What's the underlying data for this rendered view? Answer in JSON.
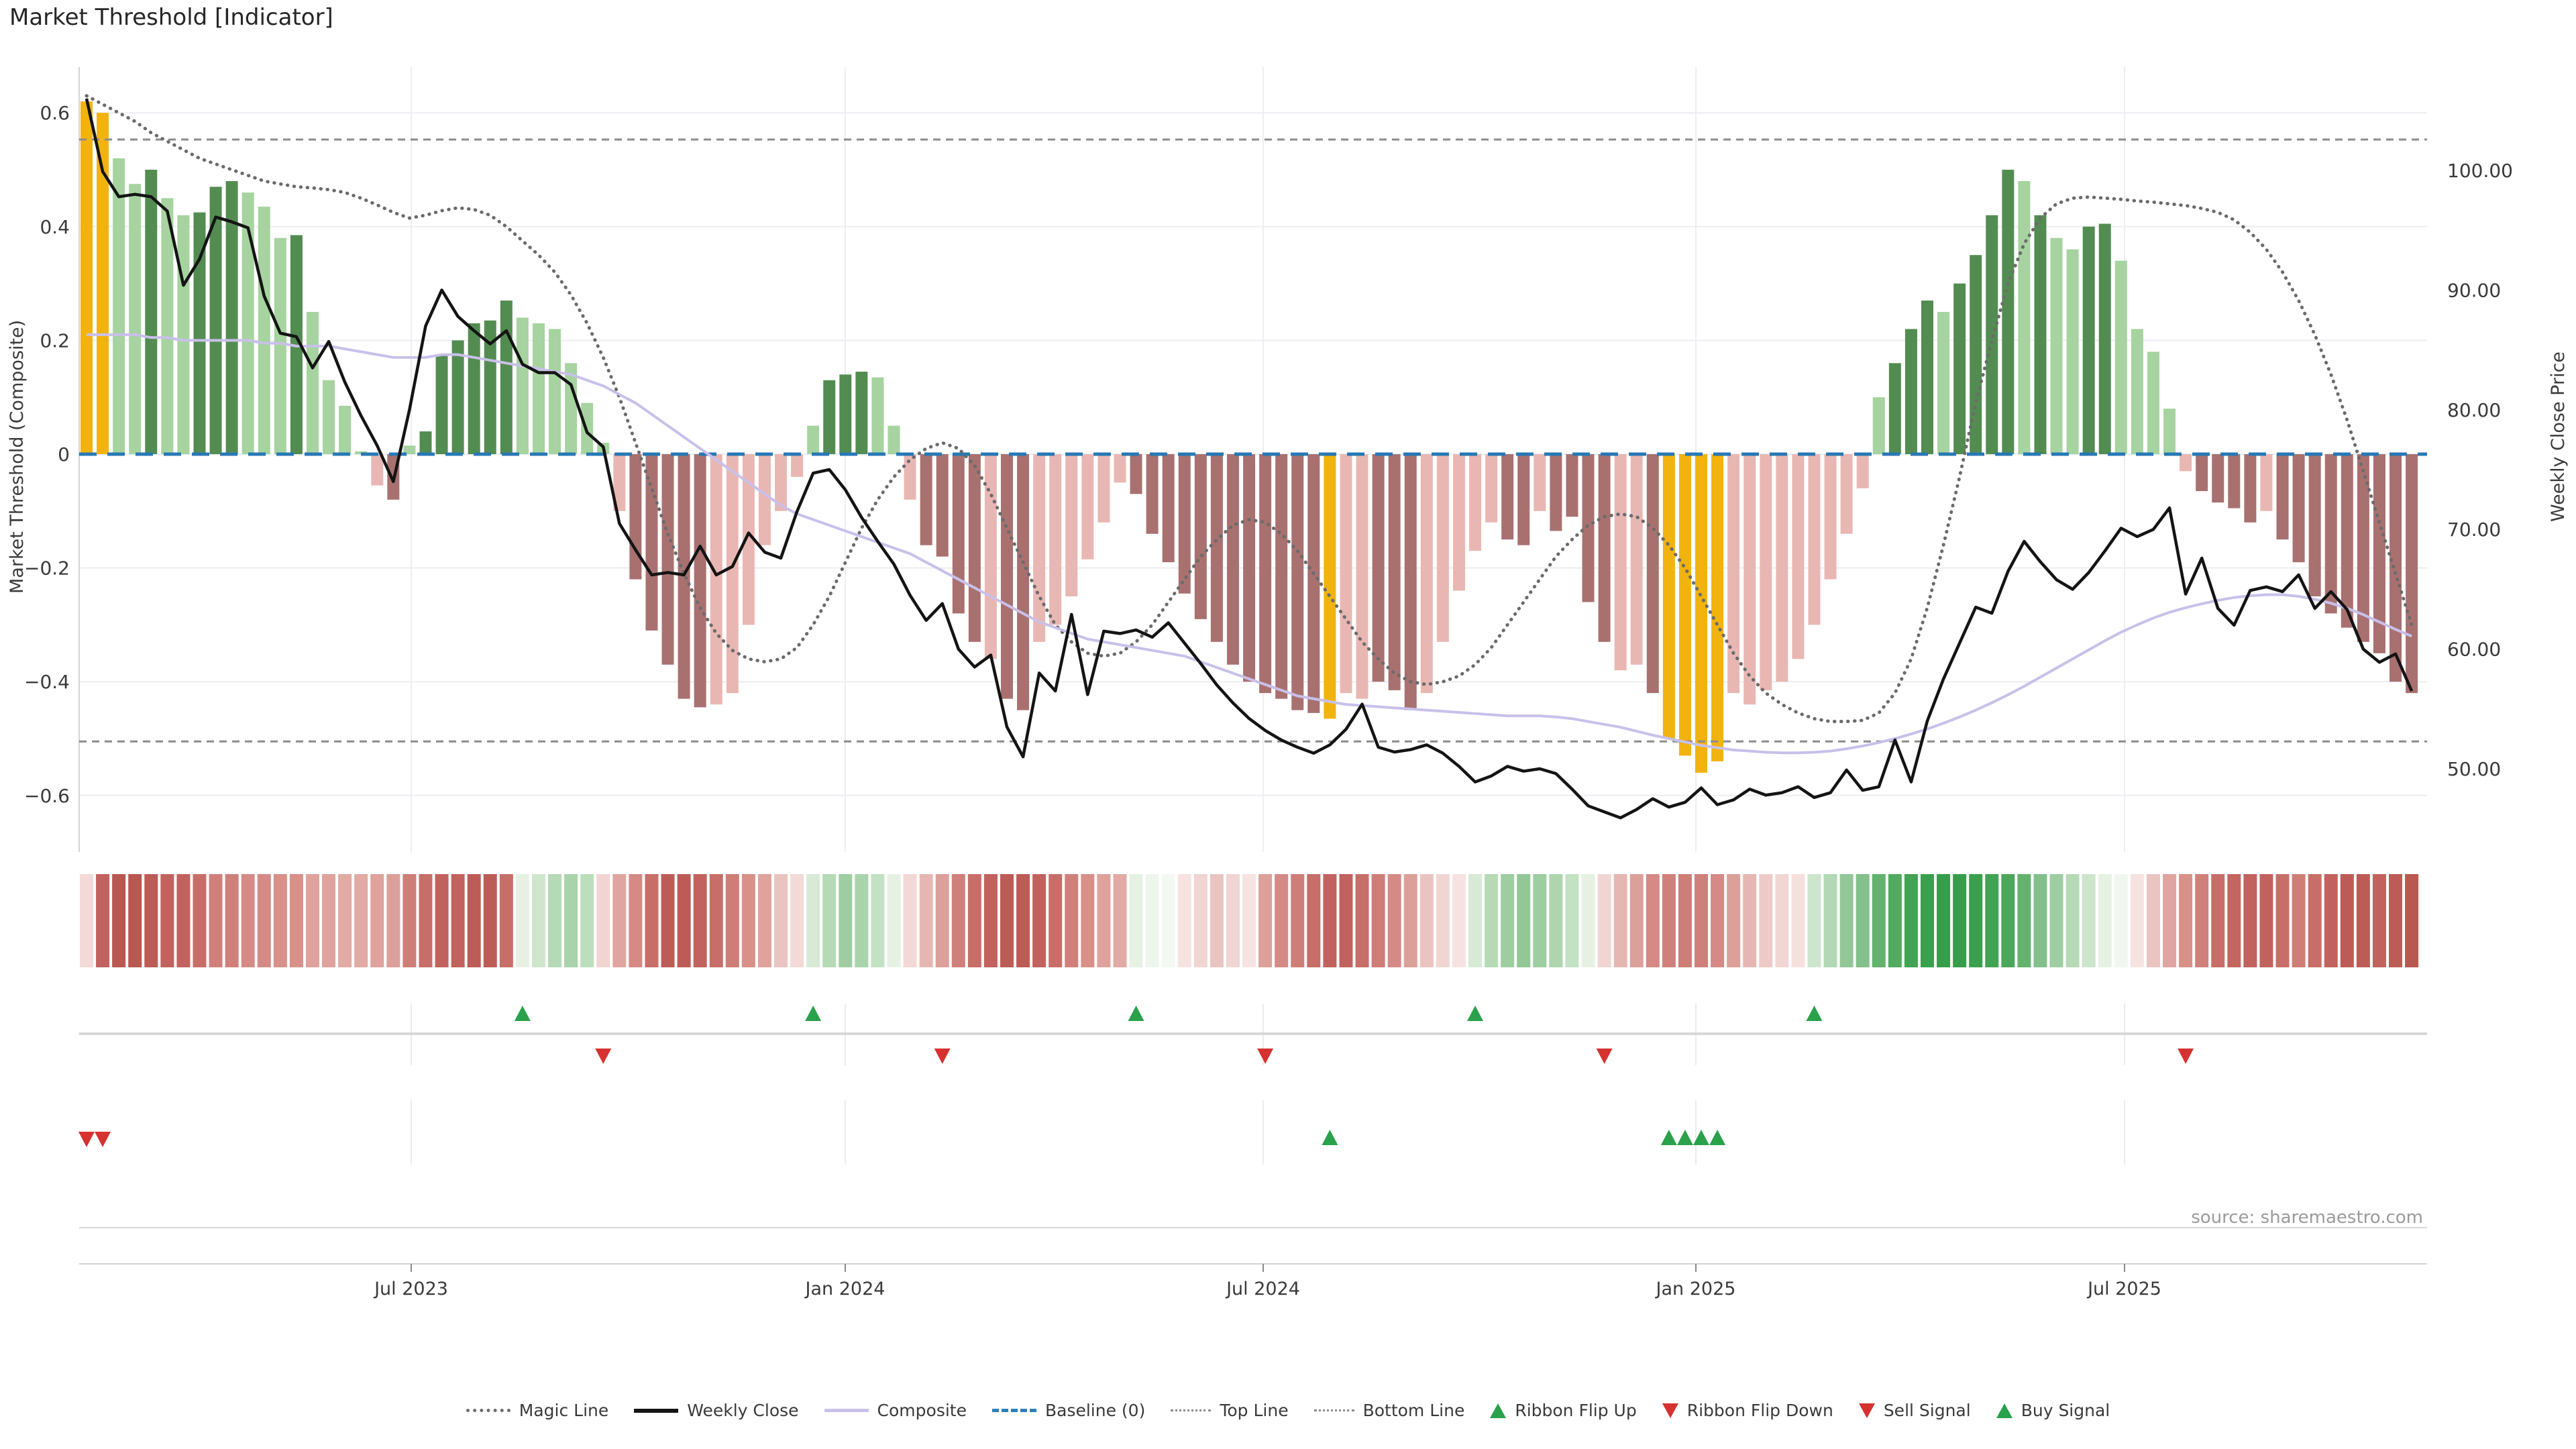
{
  "chart_data": {
    "type": "bar",
    "title": "Market Threshold [Indicator]",
    "source": "source: sharemaestro.com",
    "y_left": {
      "label": "Market Threshold (Composite)",
      "range": [
        -0.7,
        0.68
      ],
      "ticks": [
        {
          "label": "0.6",
          "v": 0.6
        },
        {
          "label": "0.4",
          "v": 0.4
        },
        {
          "label": "0.2",
          "v": 0.2
        },
        {
          "label": "0",
          "v": 0.0
        },
        {
          "label": "−0.2",
          "v": -0.2
        },
        {
          "label": "−0.4",
          "v": -0.4
        },
        {
          "label": "−0.6",
          "v": -0.6
        }
      ]
    },
    "y_right": {
      "label": "Weekly Close Price",
      "range": [
        43,
        108
      ],
      "ticks": [
        {
          "label": "100.00",
          "p": 100
        },
        {
          "label": "90.00",
          "p": 90
        },
        {
          "label": "80.00",
          "p": 80
        },
        {
          "label": "70.00",
          "p": 70
        },
        {
          "label": "60.00",
          "p": 60
        },
        {
          "label": "50.00",
          "p": 50
        }
      ]
    },
    "x_axis": {
      "ticks": [
        {
          "label": "Jul 2023",
          "x": 613
        },
        {
          "label": "Jan 2024",
          "x": 1260
        },
        {
          "label": "Jul 2024",
          "x": 1883
        },
        {
          "label": "Jan 2025",
          "x": 2528
        },
        {
          "label": "Jul 2025",
          "x": 3167
        }
      ],
      "weeks": 145,
      "start": "mid-Feb 2023",
      "grid": true,
      "legend_position": "bottom"
    },
    "reference_lines": {
      "top_line": 0.553,
      "bottom_line": -0.505,
      "baseline": 0
    },
    "colors": {
      "bar": {
        "g": "#f2b30e",
        "lg": "#a6d39f",
        "dg": "#538c51",
        "lr": "#e9b7b3",
        "dr": "#a87170"
      },
      "weekly_close": "#141414",
      "composite": "#c9c0ea",
      "magic": "#6b6b6b",
      "baseline": "#2878b5",
      "ref_dash": "#8c8c8c",
      "grid": "#ededf3",
      "signal_up": "#2aa14b",
      "signal_down": "#d63230",
      "divider": "#d8d8d8",
      "tick_text": "#3a3a3a",
      "spine": "#d4d4d4"
    },
    "series": {
      "threshold": [
        0.62,
        0.6,
        0.52,
        0.475,
        0.5,
        0.45,
        0.42,
        0.425,
        0.47,
        0.48,
        0.46,
        0.435,
        0.38,
        0.385,
        0.25,
        0.13,
        0.085,
        0.005,
        -0.055,
        -0.08,
        0.015,
        0.04,
        0.175,
        0.2,
        0.23,
        0.235,
        0.27,
        0.24,
        0.23,
        0.22,
        0.16,
        0.09,
        0.02,
        -0.1,
        -0.22,
        -0.31,
        -0.37,
        -0.43,
        -0.445,
        -0.44,
        -0.42,
        -0.3,
        -0.16,
        -0.1,
        -0.04,
        0.05,
        0.13,
        0.14,
        0.145,
        0.135,
        0.05,
        -0.08,
        -0.16,
        -0.18,
        -0.28,
        -0.33,
        -0.36,
        -0.43,
        -0.45,
        -0.33,
        -0.3,
        -0.25,
        -0.185,
        -0.12,
        -0.05,
        -0.07,
        -0.14,
        -0.19,
        -0.245,
        -0.29,
        -0.33,
        -0.37,
        -0.4,
        -0.42,
        -0.43,
        -0.45,
        -0.455,
        -0.465,
        -0.42,
        -0.43,
        -0.4,
        -0.415,
        -0.45,
        -0.42,
        -0.33,
        -0.24,
        -0.17,
        -0.12,
        -0.15,
        -0.16,
        -0.1,
        -0.135,
        -0.11,
        -0.26,
        -0.33,
        -0.38,
        -0.37,
        -0.42,
        -0.5,
        -0.53,
        -0.56,
        -0.54,
        -0.42,
        -0.44,
        -0.415,
        -0.4,
        -0.36,
        -0.3,
        -0.22,
        -0.14,
        -0.06,
        0.1,
        0.16,
        0.22,
        0.27,
        0.25,
        0.3,
        0.35,
        0.42,
        0.5,
        0.48,
        0.42,
        0.38,
        0.36,
        0.4,
        0.405,
        0.34,
        0.22,
        0.18,
        0.08,
        -0.03,
        -0.065,
        -0.085,
        -0.095,
        -0.12,
        -0.1,
        -0.15,
        -0.19,
        -0.25,
        -0.28,
        -0.305,
        -0.33,
        -0.35,
        -0.4,
        -0.42
      ],
      "bar_class": [
        "g",
        "g",
        "lg",
        "lg",
        "dg",
        "lg",
        "lg",
        "dg",
        "dg",
        "dg",
        "lg",
        "lg",
        "lg",
        "dg",
        "lg",
        "lg",
        "lg",
        "lg",
        "lr",
        "dr",
        "lg",
        "dg",
        "dg",
        "dg",
        "dg",
        "dg",
        "dg",
        "lg",
        "lg",
        "lg",
        "lg",
        "lg",
        "lg",
        "lr",
        "dr",
        "dr",
        "dr",
        "dr",
        "dr",
        "lr",
        "lr",
        "lr",
        "lr",
        "lr",
        "lr",
        "lg",
        "dg",
        "dg",
        "dg",
        "lg",
        "lg",
        "lr",
        "dr",
        "dr",
        "dr",
        "dr",
        "lr",
        "dr",
        "dr",
        "lr",
        "lr",
        "lr",
        "lr",
        "lr",
        "lr",
        "dr",
        "dr",
        "dr",
        "dr",
        "dr",
        "dr",
        "dr",
        "dr",
        "dr",
        "dr",
        "dr",
        "dr",
        "g",
        "lr",
        "lr",
        "dr",
        "dr",
        "dr",
        "lr",
        "lr",
        "lr",
        "lr",
        "lr",
        "dr",
        "dr",
        "lr",
        "dr",
        "dr",
        "dr",
        "dr",
        "lr",
        "lr",
        "dr",
        "g",
        "g",
        "g",
        "g",
        "lr",
        "lr",
        "lr",
        "lr",
        "lr",
        "lr",
        "lr",
        "lr",
        "lr",
        "lg",
        "dg",
        "dg",
        "dg",
        "lg",
        "dg",
        "dg",
        "dg",
        "dg",
        "lg",
        "dg",
        "lg",
        "lg",
        "dg",
        "dg",
        "lg",
        "lg",
        "lg",
        "lg",
        "lr",
        "dr",
        "dr",
        "dr",
        "dr",
        "lr",
        "dr",
        "dr",
        "dr",
        "dr",
        "dr",
        "dr",
        "dr",
        "dr",
        "dr"
      ],
      "weekly_close": [
        106.0,
        99.9,
        97.8,
        98.0,
        97.8,
        96.6,
        90.4,
        92.6,
        96.1,
        95.7,
        95.2,
        89.5,
        86.4,
        86.1,
        83.5,
        85.7,
        82.3,
        79.5,
        77.0,
        74.0,
        80.0,
        87.0,
        90.0,
        87.8,
        86.6,
        85.5,
        86.6,
        83.8,
        83.1,
        83.1,
        82.1,
        78.1,
        76.9,
        70.5,
        68.3,
        66.2,
        66.4,
        66.2,
        68.6,
        66.2,
        66.9,
        69.7,
        68.1,
        67.6,
        71.5,
        74.7,
        75.0,
        73.3,
        71.0,
        69.0,
        67.1,
        64.5,
        62.4,
        63.8,
        60.0,
        58.5,
        59.5,
        53.5,
        51.0,
        58.0,
        56.5,
        62.9,
        56.2,
        61.5,
        61.3,
        61.6,
        61.0,
        62.2,
        60.5,
        58.8,
        57.0,
        55.5,
        54.2,
        53.2,
        52.4,
        51.8,
        51.3,
        52.0,
        53.3,
        55.4,
        51.8,
        51.4,
        51.6,
        52.0,
        51.3,
        50.2,
        48.9,
        49.4,
        50.2,
        49.8,
        50.0,
        49.6,
        48.3,
        46.9,
        46.4,
        45.9,
        46.6,
        47.5,
        46.8,
        47.2,
        48.4,
        47.0,
        47.4,
        48.3,
        47.8,
        48.0,
        48.5,
        47.6,
        48.0,
        49.9,
        48.2,
        48.5,
        52.4,
        48.9,
        54.0,
        57.5,
        60.5,
        63.5,
        63.0,
        66.5,
        69.0,
        67.3,
        65.8,
        65.0,
        66.4,
        68.2,
        70.1,
        69.4,
        70.0,
        71.8,
        64.6,
        67.6,
        63.4,
        62.0,
        64.9,
        65.2,
        64.8,
        66.2,
        63.4,
        64.8,
        63.3,
        60.0,
        58.9,
        59.6,
        56.5
      ],
      "composite": [
        0.21,
        0.21,
        0.21,
        0.21,
        0.205,
        0.205,
        0.2,
        0.2,
        0.2,
        0.2,
        0.2,
        0.195,
        0.195,
        0.19,
        0.19,
        0.19,
        0.185,
        0.18,
        0.175,
        0.17,
        0.17,
        0.17,
        0.175,
        0.175,
        0.17,
        0.165,
        0.16,
        0.155,
        0.15,
        0.145,
        0.14,
        0.13,
        0.12,
        0.105,
        0.09,
        0.07,
        0.05,
        0.03,
        0.01,
        -0.01,
        -0.03,
        -0.05,
        -0.07,
        -0.09,
        -0.105,
        -0.115,
        -0.125,
        -0.135,
        -0.145,
        -0.155,
        -0.165,
        -0.175,
        -0.19,
        -0.205,
        -0.22,
        -0.235,
        -0.25,
        -0.265,
        -0.28,
        -0.295,
        -0.305,
        -0.315,
        -0.325,
        -0.33,
        -0.335,
        -0.34,
        -0.345,
        -0.35,
        -0.355,
        -0.365,
        -0.375,
        -0.385,
        -0.395,
        -0.405,
        -0.415,
        -0.425,
        -0.43,
        -0.435,
        -0.44,
        -0.442,
        -0.444,
        -0.446,
        -0.448,
        -0.45,
        -0.452,
        -0.454,
        -0.456,
        -0.458,
        -0.46,
        -0.46,
        -0.46,
        -0.462,
        -0.465,
        -0.47,
        -0.475,
        -0.48,
        -0.487,
        -0.494,
        -0.5,
        -0.506,
        -0.512,
        -0.516,
        -0.52,
        -0.522,
        -0.524,
        -0.525,
        -0.525,
        -0.524,
        -0.522,
        -0.518,
        -0.513,
        -0.507,
        -0.5,
        -0.492,
        -0.483,
        -0.473,
        -0.462,
        -0.45,
        -0.437,
        -0.423,
        -0.408,
        -0.392,
        -0.376,
        -0.36,
        -0.344,
        -0.328,
        -0.313,
        -0.3,
        -0.288,
        -0.278,
        -0.27,
        -0.263,
        -0.257,
        -0.252,
        -0.249,
        -0.247,
        -0.247,
        -0.25,
        -0.255,
        -0.262,
        -0.271,
        -0.282,
        -0.295,
        -0.308,
        -0.32
      ],
      "magic": [
        0.63,
        0.615,
        0.6,
        0.585,
        0.565,
        0.55,
        0.535,
        0.52,
        0.51,
        0.5,
        0.49,
        0.48,
        0.475,
        0.47,
        0.468,
        0.465,
        0.46,
        0.45,
        0.438,
        0.425,
        0.415,
        0.42,
        0.428,
        0.433,
        0.43,
        0.42,
        0.4,
        0.375,
        0.35,
        0.32,
        0.28,
        0.23,
        0.17,
        0.1,
        0.02,
        -0.06,
        -0.14,
        -0.21,
        -0.27,
        -0.315,
        -0.345,
        -0.36,
        -0.365,
        -0.36,
        -0.34,
        -0.3,
        -0.25,
        -0.19,
        -0.13,
        -0.08,
        -0.04,
        -0.01,
        0.01,
        0.02,
        0.01,
        -0.02,
        -0.07,
        -0.13,
        -0.19,
        -0.25,
        -0.3,
        -0.33,
        -0.35,
        -0.355,
        -0.35,
        -0.33,
        -0.3,
        -0.26,
        -0.22,
        -0.18,
        -0.15,
        -0.125,
        -0.115,
        -0.12,
        -0.14,
        -0.17,
        -0.21,
        -0.25,
        -0.29,
        -0.33,
        -0.36,
        -0.385,
        -0.4,
        -0.405,
        -0.4,
        -0.39,
        -0.37,
        -0.34,
        -0.3,
        -0.26,
        -0.22,
        -0.18,
        -0.15,
        -0.125,
        -0.11,
        -0.105,
        -0.11,
        -0.13,
        -0.16,
        -0.2,
        -0.25,
        -0.3,
        -0.35,
        -0.39,
        -0.42,
        -0.44,
        -0.455,
        -0.465,
        -0.47,
        -0.47,
        -0.468,
        -0.455,
        -0.42,
        -0.36,
        -0.27,
        -0.16,
        -0.04,
        0.09,
        0.2,
        0.3,
        0.37,
        0.415,
        0.44,
        0.45,
        0.452,
        0.45,
        0.448,
        0.445,
        0.443,
        0.44,
        0.437,
        0.432,
        0.425,
        0.412,
        0.39,
        0.36,
        0.32,
        0.27,
        0.21,
        0.14,
        0.06,
        -0.03,
        -0.12,
        -0.21,
        -0.3
      ]
    },
    "ribbon": [
      "#f3dad8",
      "#c2625e",
      "#b95751",
      "#b95751",
      "#bd5c57",
      "#c2625e",
      "#c2625e",
      "#c86e68",
      "#d0807b",
      "#d0807b",
      "#d58a85",
      "#d58a85",
      "#d89089",
      "#d89089",
      "#dfa29d",
      "#dfa29d",
      "#e2aaa4",
      "#e2aaa4",
      "#dfa29d",
      "#dca09a",
      "#cf7d77",
      "#c86e68",
      "#c2625e",
      "#c2625e",
      "#bd5c57",
      "#bd5c57",
      "#c86e68",
      "#e6f1e4",
      "#cfe6cd",
      "#b6dab6",
      "#a9d3aa",
      "#bcdebc",
      "#f0d5d3",
      "#e0a5a0",
      "#d58a85",
      "#c86e68",
      "#bd5c57",
      "#bd5c57",
      "#c2625e",
      "#c86e68",
      "#cf7d77",
      "#d89089",
      "#dfa29d",
      "#eac4c1",
      "#f3dad8",
      "#d8ead6",
      "#b6dab6",
      "#9fcda2",
      "#a9d3aa",
      "#c3e1c3",
      "#e6f1e4",
      "#f2d8d6",
      "#e6b7b2",
      "#dca09a",
      "#d0807b",
      "#c86e68",
      "#c2625e",
      "#bd5c57",
      "#bd5c57",
      "#c2625e",
      "#c86e68",
      "#d0807b",
      "#d89089",
      "#dfa29d",
      "#e2aaa4",
      "#e6f1e4",
      "#edf5ec",
      "#f3f8f2",
      "#f6e3e1",
      "#f0d5d3",
      "#eac4c1",
      "#f0d5d3",
      "#f6e3e1",
      "#dca09a",
      "#d58a85",
      "#cf7d77",
      "#c86e68",
      "#c2625e",
      "#c2625e",
      "#c86e68",
      "#cf7d77",
      "#d58a85",
      "#dca09a",
      "#eac4c1",
      "#f0d5d3",
      "#f6e3e1",
      "#d8ead6",
      "#b6dab6",
      "#9fcda2",
      "#93c798",
      "#9fcda2",
      "#aed5ae",
      "#c3e1c3",
      "#e6f1e4",
      "#f0d5d3",
      "#e6b7b2",
      "#dca09a",
      "#d58a85",
      "#d0807b",
      "#cf7d77",
      "#d0807b",
      "#d58a85",
      "#dca09a",
      "#e6b7b2",
      "#edcac8",
      "#f2d6d4",
      "#f6e0de",
      "#cde4cd",
      "#b3d8b5",
      "#93c798",
      "#83c08b",
      "#63b26e",
      "#52aa60",
      "#43a354",
      "#3b9f4e",
      "#379d4b",
      "#379d4b",
      "#3b9f4e",
      "#43a354",
      "#4ca75a",
      "#63b26e",
      "#83c08b",
      "#9fcda2",
      "#b6dab6",
      "#cde4cd",
      "#e6f1e4",
      "#f1f7f0",
      "#f6e3e1",
      "#eac4c1",
      "#e0a5a0",
      "#d89089",
      "#d0807b",
      "#c86e68",
      "#c4665f",
      "#c2625e",
      "#c2625e",
      "#c86e68",
      "#cf7d77",
      "#c86e68",
      "#c2625e",
      "#bd5c57",
      "#bd5c57",
      "#c2625e",
      "#bd5c57",
      "#b95751"
    ],
    "signals": {
      "ribbon_flip_up_weeks": [
        27,
        45,
        65,
        86,
        107
      ],
      "ribbon_flip_down_weeks": [
        32,
        53,
        73,
        94,
        130
      ],
      "sell_weeks": [
        0,
        1
      ],
      "buy_weeks": [
        77,
        98,
        99,
        100,
        101
      ]
    },
    "legend": [
      {
        "label": "Magic Line",
        "swatch": "sw-dotted"
      },
      {
        "label": "Weekly Close",
        "swatch": "sw-solid-close"
      },
      {
        "label": "Composite",
        "swatch": "sw-solid-comp"
      },
      {
        "label": "Baseline (0)",
        "swatch": "sw-dashed"
      },
      {
        "label": "Top Line",
        "swatch": "sw-dotted-thin"
      },
      {
        "label": "Bottom Line",
        "swatch": "sw-dotted-thin"
      },
      {
        "label": "Ribbon Flip Up",
        "swatch": "sw-tri-up"
      },
      {
        "label": "Ribbon Flip Down",
        "swatch": "sw-tri-down"
      },
      {
        "label": "Sell Signal",
        "swatch": "sw-tri-down"
      },
      {
        "label": "Buy Signal",
        "swatch": "sw-tri-up"
      }
    ]
  }
}
